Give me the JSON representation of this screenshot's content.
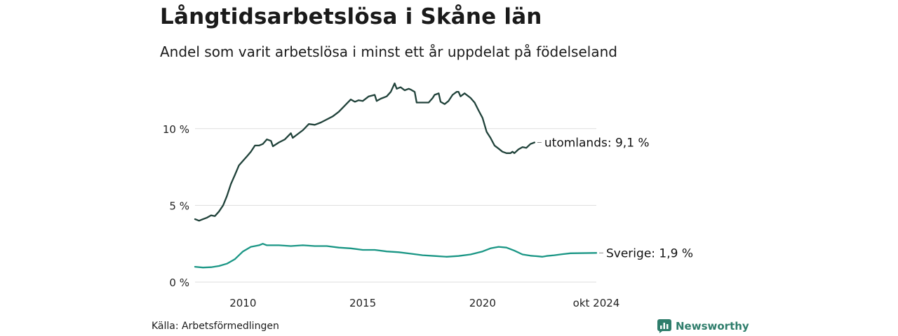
{
  "title": "Långtidsarbetslösa i Skåne län",
  "subtitle": "Andel som varit arbetslösa i minst ett år uppdelat på födelseland",
  "source": "Källa: Arbetsförmedlingen",
  "brand": "Newsworthy",
  "colors": {
    "utomlands": "#20423a",
    "sverige": "#1a9685",
    "grid": "#dddddd",
    "brand": "#2e7d6b"
  },
  "icons": {
    "brand_logo": "newsworthy-logo-icon"
  },
  "chart_data": {
    "type": "line",
    "x_unit": "year",
    "ylim": [
      0,
      13
    ],
    "xlim": [
      2008.0,
      2024.75
    ],
    "y_ticks": [
      {
        "value": 0,
        "label": "0 %"
      },
      {
        "value": 5,
        "label": "5 %"
      },
      {
        "value": 10,
        "label": "10 %"
      }
    ],
    "x_ticks": [
      {
        "value": 2010,
        "label": "2010"
      },
      {
        "value": 2015,
        "label": "2015"
      },
      {
        "value": 2020,
        "label": "2020"
      },
      {
        "value": 2024.75,
        "label": "okt 2024"
      }
    ],
    "grid": true,
    "series": [
      {
        "name": "utomlands",
        "end_label": "utomlands: 9,1 %",
        "color": "#20423a",
        "points": [
          [
            2008.0,
            4.1
          ],
          [
            2008.17,
            4.0
          ],
          [
            2008.33,
            4.1
          ],
          [
            2008.5,
            4.2
          ],
          [
            2008.67,
            4.35
          ],
          [
            2008.83,
            4.3
          ],
          [
            2009.0,
            4.6
          ],
          [
            2009.17,
            5.0
          ],
          [
            2009.33,
            5.6
          ],
          [
            2009.5,
            6.4
          ],
          [
            2009.67,
            7.0
          ],
          [
            2009.83,
            7.6
          ],
          [
            2010.0,
            7.9
          ],
          [
            2010.17,
            8.2
          ],
          [
            2010.33,
            8.5
          ],
          [
            2010.5,
            8.9
          ],
          [
            2010.67,
            8.9
          ],
          [
            2010.83,
            9.0
          ],
          [
            2011.0,
            9.3
          ],
          [
            2011.17,
            9.2
          ],
          [
            2011.25,
            8.85
          ],
          [
            2011.5,
            9.1
          ],
          [
            2011.75,
            9.3
          ],
          [
            2012.0,
            9.7
          ],
          [
            2012.08,
            9.4
          ],
          [
            2012.25,
            9.6
          ],
          [
            2012.5,
            9.9
          ],
          [
            2012.75,
            10.3
          ],
          [
            2013.0,
            10.25
          ],
          [
            2013.25,
            10.4
          ],
          [
            2013.5,
            10.6
          ],
          [
            2013.75,
            10.8
          ],
          [
            2014.0,
            11.1
          ],
          [
            2014.25,
            11.5
          ],
          [
            2014.5,
            11.9
          ],
          [
            2014.67,
            11.75
          ],
          [
            2014.83,
            11.85
          ],
          [
            2015.0,
            11.8
          ],
          [
            2015.25,
            12.1
          ],
          [
            2015.5,
            12.2
          ],
          [
            2015.58,
            11.8
          ],
          [
            2015.75,
            11.95
          ],
          [
            2016.0,
            12.1
          ],
          [
            2016.17,
            12.4
          ],
          [
            2016.33,
            12.95
          ],
          [
            2016.42,
            12.6
          ],
          [
            2016.58,
            12.7
          ],
          [
            2016.75,
            12.5
          ],
          [
            2016.92,
            12.6
          ],
          [
            2017.0,
            12.55
          ],
          [
            2017.17,
            12.4
          ],
          [
            2017.25,
            11.7
          ],
          [
            2017.5,
            11.7
          ],
          [
            2017.75,
            11.7
          ],
          [
            2017.92,
            12.0
          ],
          [
            2018.0,
            12.2
          ],
          [
            2018.17,
            12.3
          ],
          [
            2018.25,
            11.75
          ],
          [
            2018.42,
            11.6
          ],
          [
            2018.58,
            11.8
          ],
          [
            2018.75,
            12.2
          ],
          [
            2018.92,
            12.4
          ],
          [
            2019.0,
            12.4
          ],
          [
            2019.08,
            12.1
          ],
          [
            2019.25,
            12.3
          ],
          [
            2019.5,
            12.0
          ],
          [
            2019.67,
            11.7
          ],
          [
            2019.83,
            11.2
          ],
          [
            2020.0,
            10.7
          ],
          [
            2020.17,
            9.8
          ],
          [
            2020.33,
            9.4
          ],
          [
            2020.5,
            8.9
          ],
          [
            2020.67,
            8.7
          ],
          [
            2020.83,
            8.5
          ],
          [
            2021.0,
            8.4
          ],
          [
            2021.17,
            8.4
          ],
          [
            2021.25,
            8.5
          ],
          [
            2021.33,
            8.4
          ],
          [
            2021.5,
            8.65
          ],
          [
            2021.67,
            8.8
          ],
          [
            2021.83,
            8.75
          ],
          [
            2022.0,
            9.0
          ],
          [
            2022.17,
            9.1
          ]
        ]
      },
      {
        "name": "Sverige",
        "end_label": "Sverige: 1,9 %",
        "color": "#1a9685",
        "points": [
          [
            2008.0,
            1.0
          ],
          [
            2008.33,
            0.95
          ],
          [
            2008.67,
            0.97
          ],
          [
            2009.0,
            1.05
          ],
          [
            2009.33,
            1.2
          ],
          [
            2009.67,
            1.5
          ],
          [
            2010.0,
            2.0
          ],
          [
            2010.33,
            2.3
          ],
          [
            2010.67,
            2.4
          ],
          [
            2010.83,
            2.5
          ],
          [
            2011.0,
            2.4
          ],
          [
            2011.5,
            2.4
          ],
          [
            2012.0,
            2.35
          ],
          [
            2012.5,
            2.4
          ],
          [
            2013.0,
            2.35
          ],
          [
            2013.5,
            2.35
          ],
          [
            2014.0,
            2.25
          ],
          [
            2014.5,
            2.2
          ],
          [
            2015.0,
            2.1
          ],
          [
            2015.5,
            2.1
          ],
          [
            2016.0,
            2.0
          ],
          [
            2016.5,
            1.95
          ],
          [
            2017.0,
            1.85
          ],
          [
            2017.5,
            1.75
          ],
          [
            2018.0,
            1.7
          ],
          [
            2018.5,
            1.65
          ],
          [
            2019.0,
            1.7
          ],
          [
            2019.5,
            1.8
          ],
          [
            2020.0,
            2.0
          ],
          [
            2020.33,
            2.2
          ],
          [
            2020.67,
            2.3
          ],
          [
            2021.0,
            2.25
          ],
          [
            2021.33,
            2.05
          ],
          [
            2021.67,
            1.8
          ],
          [
            2022.0,
            1.72
          ],
          [
            2022.33,
            1.68
          ],
          [
            2022.5,
            1.65
          ],
          [
            2022.67,
            1.7
          ],
          [
            2023.0,
            1.75
          ],
          [
            2023.33,
            1.82
          ],
          [
            2023.67,
            1.88
          ],
          [
            2024.75,
            1.9
          ]
        ]
      }
    ]
  }
}
